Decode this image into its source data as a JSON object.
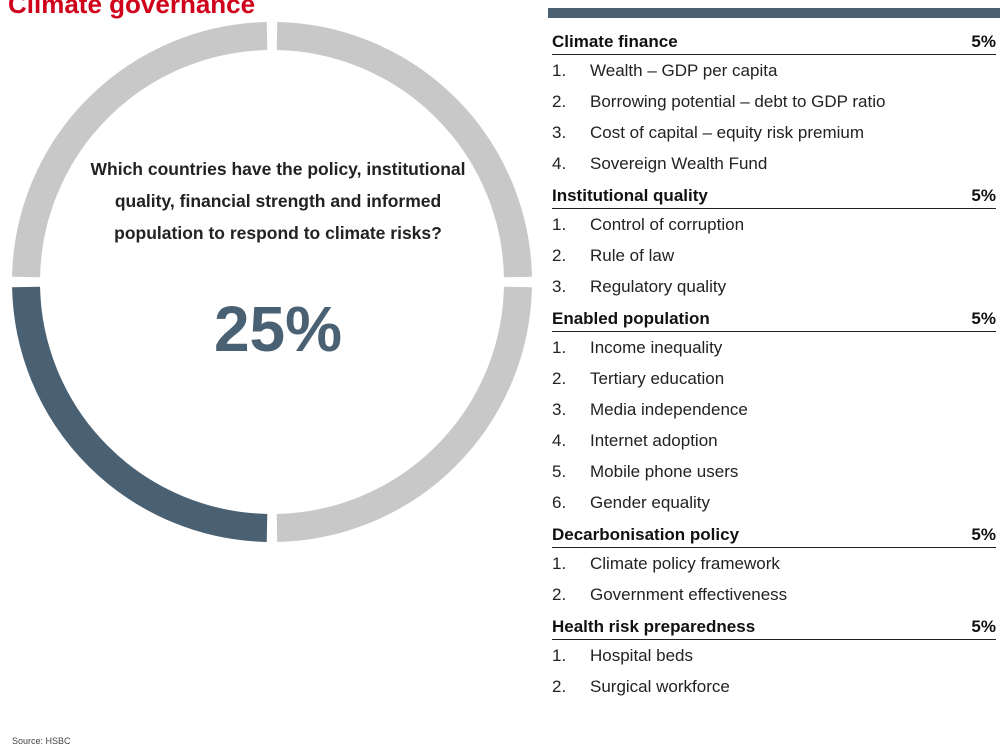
{
  "title": "Climate governance",
  "question": "Which countries have the policy, institutional quality, financial strength and informed population to respond to climate risks?",
  "weight": "25%",
  "weight_fraction": 0.25,
  "source": "Source: HSBC",
  "colors": {
    "filled": "#4a6173",
    "empty": "#c8c8c8",
    "title": "#d0021b"
  },
  "sections": [
    {
      "name": "Climate finance",
      "pct": "5%",
      "items": [
        {
          "num": "1.",
          "text": "Wealth – GDP per capita"
        },
        {
          "num": "2.",
          "text": "Borrowing potential – debt to GDP ratio"
        },
        {
          "num": "3.",
          "text": "Cost of capital – equity risk premium"
        },
        {
          "num": "4.",
          "text": "Sovereign Wealth Fund"
        }
      ]
    },
    {
      "name": "Institutional quality",
      "pct": "5%",
      "items": [
        {
          "num": "1.",
          "text": "Control of corruption"
        },
        {
          "num": "2.",
          "text": "Rule of law"
        },
        {
          "num": "3.",
          "text": "Regulatory quality"
        }
      ]
    },
    {
      "name": "Enabled population",
      "pct": "5%",
      "items": [
        {
          "num": "1.",
          "text": "Income inequality"
        },
        {
          "num": "2.",
          "text": "Tertiary education"
        },
        {
          "num": "3.",
          "text": "Media independence"
        },
        {
          "num": "4.",
          "text": "Internet adoption"
        },
        {
          "num": "5.",
          "text": "Mobile phone users"
        },
        {
          "num": "6.",
          "text": "Gender equality"
        }
      ]
    },
    {
      "name": "Decarbonisation policy",
      "pct": "5%",
      "items": [
        {
          "num": "1.",
          "text": "Climate policy framework"
        },
        {
          "num": "2.",
          "text": "Government effectiveness"
        }
      ]
    },
    {
      "name": "Health risk preparedness",
      "pct": "5%",
      "items": [
        {
          "num": "1.",
          "text": "Hospital beds"
        },
        {
          "num": "2.",
          "text": "Surgical workforce"
        }
      ]
    }
  ]
}
